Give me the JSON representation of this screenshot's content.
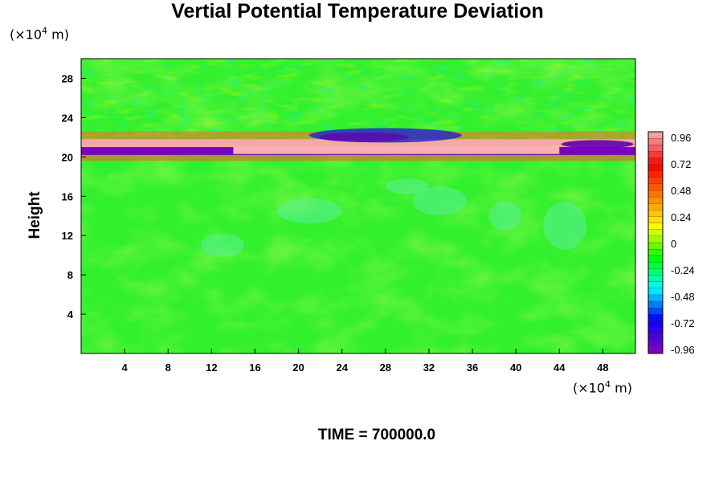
{
  "chart_data": {
    "type": "heatmap",
    "title": "Vertial Potential Temperature Deviation",
    "ylabel": "Height",
    "y_unit_prefix": "(×10",
    "y_unit_exp": "4",
    "y_unit_suffix": " m)",
    "x_unit_prefix": "(×10",
    "x_unit_exp": "4",
    "x_unit_suffix": " m)",
    "time_label": "TIME = 700000.0",
    "xlim": [
      0,
      51
    ],
    "ylim": [
      0,
      30
    ],
    "xticks": [
      4,
      8,
      12,
      16,
      20,
      24,
      28,
      32,
      36,
      40,
      44,
      48
    ],
    "yticks": [
      4,
      8,
      12,
      16,
      20,
      24,
      28
    ],
    "colorbar": {
      "min": -0.96,
      "max": 0.96,
      "labels": [
        "0.96",
        "0.72",
        "0.48",
        "0.24",
        "0",
        "-0.24",
        "-0.48",
        "-0.72",
        "-0.96"
      ],
      "colors": [
        "#f4a0a0",
        "#ff0000",
        "#ff8000",
        "#ffff00",
        "#00ff00",
        "#00ffff",
        "#0000ff",
        "#8000c0"
      ]
    }
  }
}
